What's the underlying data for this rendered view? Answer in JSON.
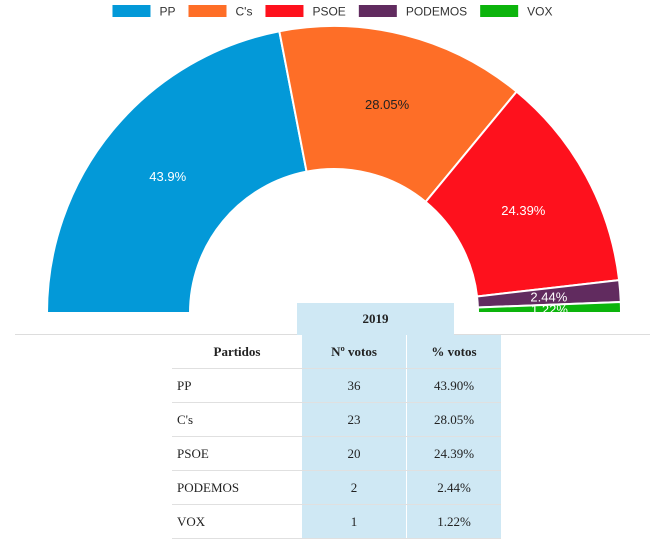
{
  "chart_data": {
    "type": "pie",
    "subtype": "semicircle-donut",
    "legend_position": "top",
    "slices": [
      {
        "name": "PP",
        "value": 43.9,
        "label": "43.9%",
        "color": "#0399d8",
        "label_color": "#ffffff"
      },
      {
        "name": "C's",
        "value": 28.05,
        "label": "28.05%",
        "color": "#fe6e27",
        "label_color": "#222222"
      },
      {
        "name": "PSOE",
        "value": 24.39,
        "label": "24.39%",
        "color": "#fe111d",
        "label_color": "#ffffff"
      },
      {
        "name": "PODEMOS",
        "value": 2.44,
        "label": "2.44%",
        "color": "#612b5f",
        "label_color": "#ffffff"
      },
      {
        "name": "VOX",
        "value": 1.22,
        "label": "1.22%",
        "color": "#0cb40c",
        "label_color": "#ffffff"
      }
    ]
  },
  "table": {
    "year_header": "2019",
    "columns": [
      "Partidos",
      "Nº votos",
      "% votos"
    ],
    "rows": [
      {
        "party": "PP",
        "votes": "36",
        "pct": "43.90%"
      },
      {
        "party": "C's",
        "votes": "23",
        "pct": "28.05%"
      },
      {
        "party": "PSOE",
        "votes": "20",
        "pct": "24.39%"
      },
      {
        "party": "PODEMOS",
        "votes": "2",
        "pct": "2.44%"
      },
      {
        "party": "VOX",
        "votes": "1",
        "pct": "1.22%"
      }
    ]
  }
}
